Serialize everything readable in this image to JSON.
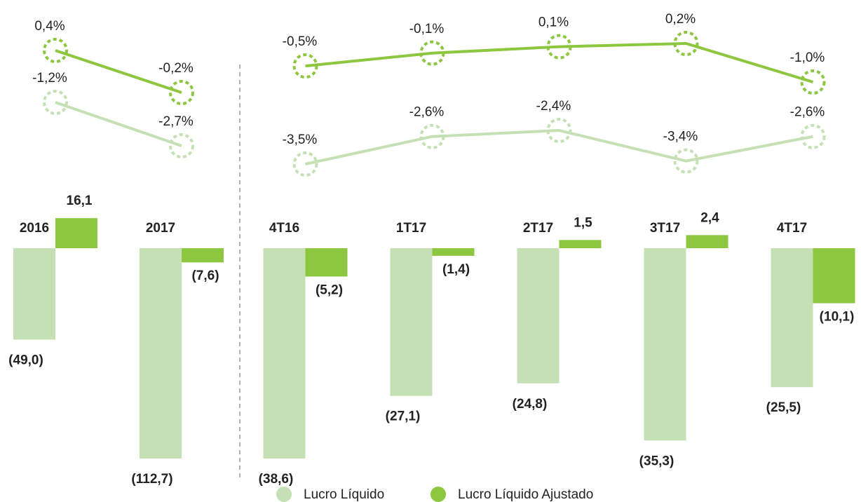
{
  "chart_data": [
    {
      "type": "bar",
      "categories": [
        "2016",
        "2017"
      ],
      "series": [
        {
          "name": "Lucro Líquido",
          "color": "#c5e0b4",
          "values": [
            -49.0,
            -112.7
          ],
          "value_labels": [
            "(49,0)",
            "(112,7)"
          ]
        },
        {
          "name": "Lucro Líquido Ajustado",
          "color": "#8dc63f",
          "values": [
            16.1,
            -7.6
          ],
          "value_labels": [
            "16,1",
            "(7,6)"
          ]
        }
      ],
      "lines": [
        {
          "color": "#8dc63f",
          "values": [
            0.4,
            -0.2
          ],
          "value_labels": [
            "0,4%",
            "-0,2%"
          ]
        },
        {
          "color": "#c5e0b4",
          "values": [
            -1.2,
            -2.7
          ],
          "value_labels": [
            "-1,2%",
            "-2,7%"
          ]
        }
      ]
    },
    {
      "type": "bar",
      "categories": [
        "4T16",
        "1T17",
        "2T17",
        "3T17",
        "4T17"
      ],
      "series": [
        {
          "color": "#c5e0b4",
          "values": [
            -38.6,
            -27.1,
            -24.8,
            -35.3,
            -25.5
          ],
          "value_labels": [
            "(38,6)",
            "(27,1)",
            "(24,8)",
            "(35,3)",
            "(25,5)"
          ]
        },
        {
          "color": "#8dc63f",
          "values": [
            -5.2,
            -1.4,
            1.5,
            2.4,
            -10.1
          ],
          "value_labels": [
            "(5,2)",
            "(1,4)",
            "1,5",
            "2,4",
            "(10,1)"
          ]
        }
      ],
      "lines": [
        {
          "color": "#8dc63f",
          "values": [
            -0.5,
            -0.1,
            0.1,
            0.2,
            -1.0
          ],
          "value_labels": [
            "-0,5%",
            "-0,1%",
            "0,1%",
            "0,2%",
            "-1,0%"
          ]
        },
        {
          "color": "#c5e0b4",
          "values": [
            -3.5,
            -2.6,
            -2.4,
            -3.4,
            -2.6
          ],
          "value_labels": [
            "-3,5%",
            "-2,6%",
            "-2,4%",
            "-3,4%",
            "-2,6%"
          ]
        }
      ]
    }
  ]
}
